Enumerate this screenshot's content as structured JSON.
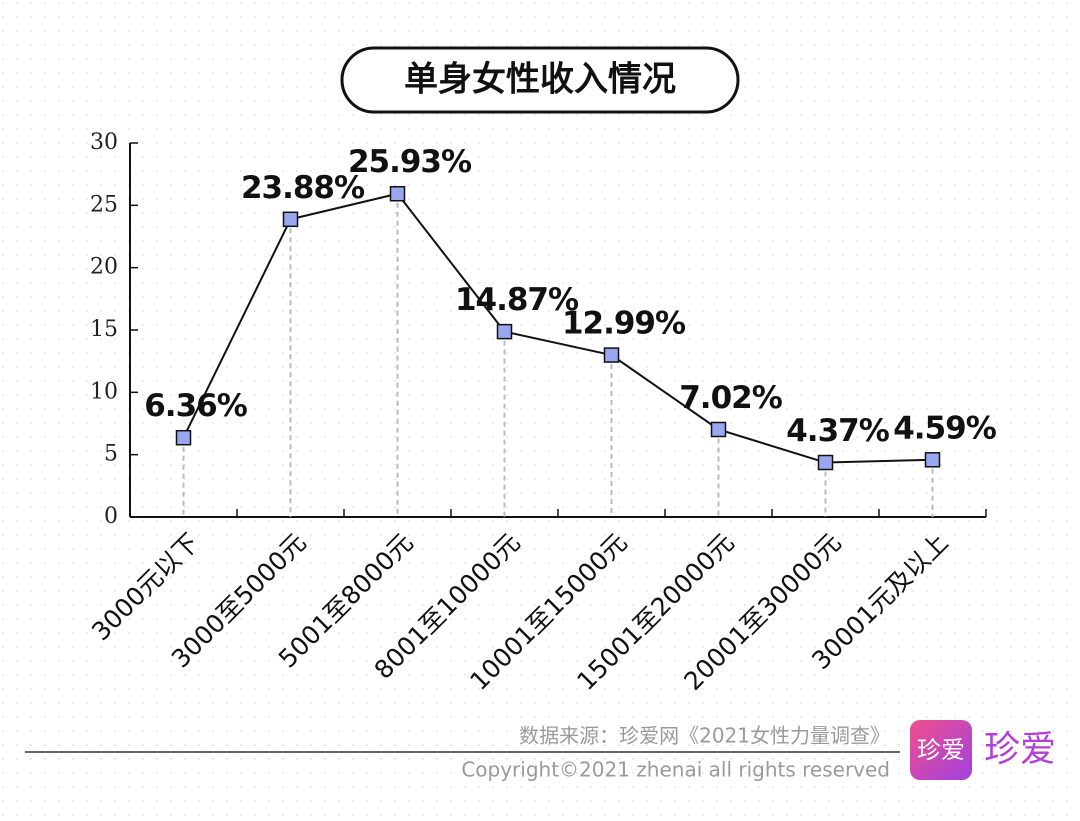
{
  "chart_data": {
    "type": "line",
    "title": "单身女性收入情况",
    "categories": [
      "3000元以下",
      "3000至5000元",
      "5001至8000元",
      "8001至10000元",
      "10001至15000元",
      "15001至20000元",
      "20001至30000元",
      "30001元及以上"
    ],
    "values": [
      6.36,
      23.88,
      25.93,
      14.87,
      12.99,
      7.02,
      4.37,
      4.59
    ],
    "value_labels": [
      "6.36%",
      "23.88%",
      "25.93%",
      "14.87%",
      "12.99%",
      "7.02%",
      "4.37%",
      "4.59%"
    ],
    "color": "#9aa6f0",
    "line_color": "#111111",
    "ylim": [
      0,
      30
    ],
    "yticks": [
      0,
      5,
      10,
      15,
      20,
      25,
      30
    ]
  },
  "footer": {
    "source": "数据来源：珍爱网《2021女性力量调查》",
    "copyright": "Copyright©2021  zhenai  all rights reserved"
  },
  "logo": {
    "badge": "珍爱",
    "wordmark": "珍爱"
  }
}
